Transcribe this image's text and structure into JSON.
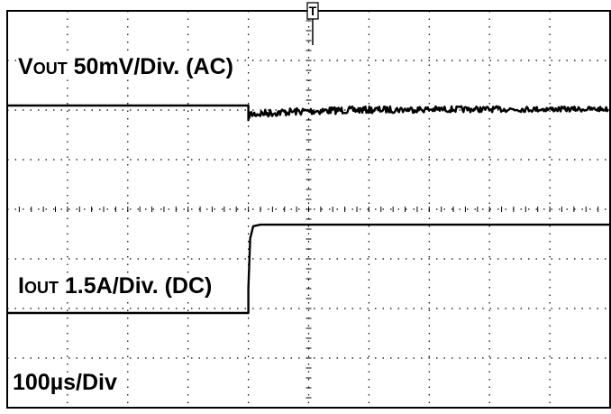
{
  "chart_data": {
    "type": "line",
    "grid": true,
    "grid_divisions": {
      "x": 10,
      "y": 8
    },
    "timebase": "100µs/Div",
    "trigger_marker": "T",
    "series": [
      {
        "name": "V_OUT 50mV/Div. (AC)",
        "label_main": "V",
        "label_sub": "OUT",
        "label_rest": " 50mV/Div. (AC)",
        "coupling": "AC",
        "scale_per_div": "50mV",
        "color": "#000000",
        "points_div": [
          [
            0,
            0
          ],
          [
            4.0,
            0
          ],
          [
            4.0,
            0.15
          ],
          [
            4.05,
            -0.05
          ],
          [
            4.15,
            -0.1
          ],
          [
            10,
            -0.15
          ]
        ],
        "noise_after_div": 4.0,
        "noise_amplitude_div": 0.08
      },
      {
        "name": "I_OUT 1.5A/Div. (DC)",
        "label_main": "I",
        "label_sub": "OUT",
        "label_rest": " 1.5A/Div. (DC)",
        "coupling": "DC",
        "scale_per_div": "1.5A",
        "color": "#000000",
        "points_div": [
          [
            0,
            0
          ],
          [
            4.0,
            0
          ],
          [
            4.0,
            0.5
          ],
          [
            4.03,
            1.5
          ],
          [
            4.08,
            1.75
          ],
          [
            4.2,
            1.78
          ],
          [
            10,
            1.78
          ]
        ]
      }
    ],
    "annotations": [
      "100µs/Div"
    ],
    "time_label": {
      "number": "100",
      "mu": "µ",
      "rest": "s/Div"
    }
  }
}
